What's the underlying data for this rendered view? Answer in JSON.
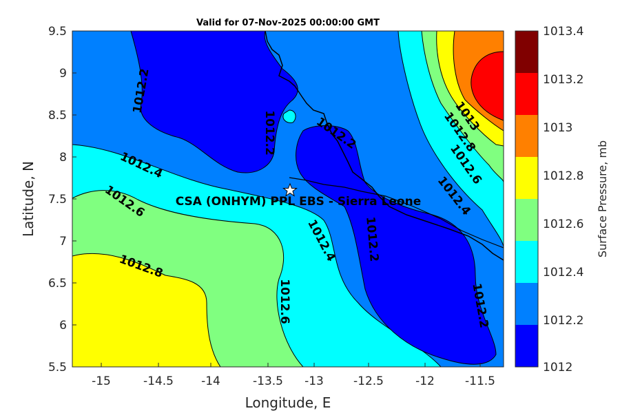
{
  "title": "Valid for 07-Nov-2025 00:00:00 GMT",
  "x_axis": {
    "label": "Longitude, E",
    "ticks": [
      "-15",
      "-14.5",
      "-14",
      "-13.5",
      "-13",
      "-12.5",
      "-12",
      "-11.5"
    ]
  },
  "y_axis": {
    "label": "Latitude, N",
    "ticks": [
      "9.5",
      "9",
      "8.5",
      "8",
      "7.5",
      "7",
      "6.5",
      "6",
      "5.5"
    ]
  },
  "site": {
    "label": "CSA (ONHYM) PPL EBS  - Sierra Leone",
    "marker": "star-icon"
  },
  "contour_labels": [
    "1012.2",
    "1012.2",
    "1012.2",
    "1012.2",
    "1012.2",
    "1012.4",
    "1012.4",
    "1012.4",
    "1012.6",
    "1012.6",
    "1012.6",
    "1012.8",
    "1013",
    "1012.8"
  ],
  "colorbar": {
    "label": "Surface Pressure, mb",
    "ticks": [
      "1013.4",
      "1013.2",
      "1013",
      "1012.8",
      "1012.6",
      "1012.4",
      "1012.2",
      "1012"
    ],
    "colors": [
      "#800000",
      "#ff0000",
      "#ff8000",
      "#ffff00",
      "#80ff80",
      "#00ffff",
      "#0080ff",
      "#0000ff"
    ]
  },
  "chart_data": {
    "type": "heatmap",
    "title": "Valid for 07-Nov-2025 00:00:00 GMT",
    "xlabel": "Longitude, E",
    "ylabel": "Latitude, N",
    "xlim": [
      -15.35,
      -11.25
    ],
    "ylim": [
      5.5,
      9.5
    ],
    "contour_levels": [
      1012,
      1012.2,
      1012.4,
      1012.6,
      1012.8,
      1013,
      1013.2,
      1013.4
    ],
    "colorbar_label": "Surface Pressure, mb",
    "site": {
      "lon": -13.25,
      "lat": 7.6
    }
  }
}
